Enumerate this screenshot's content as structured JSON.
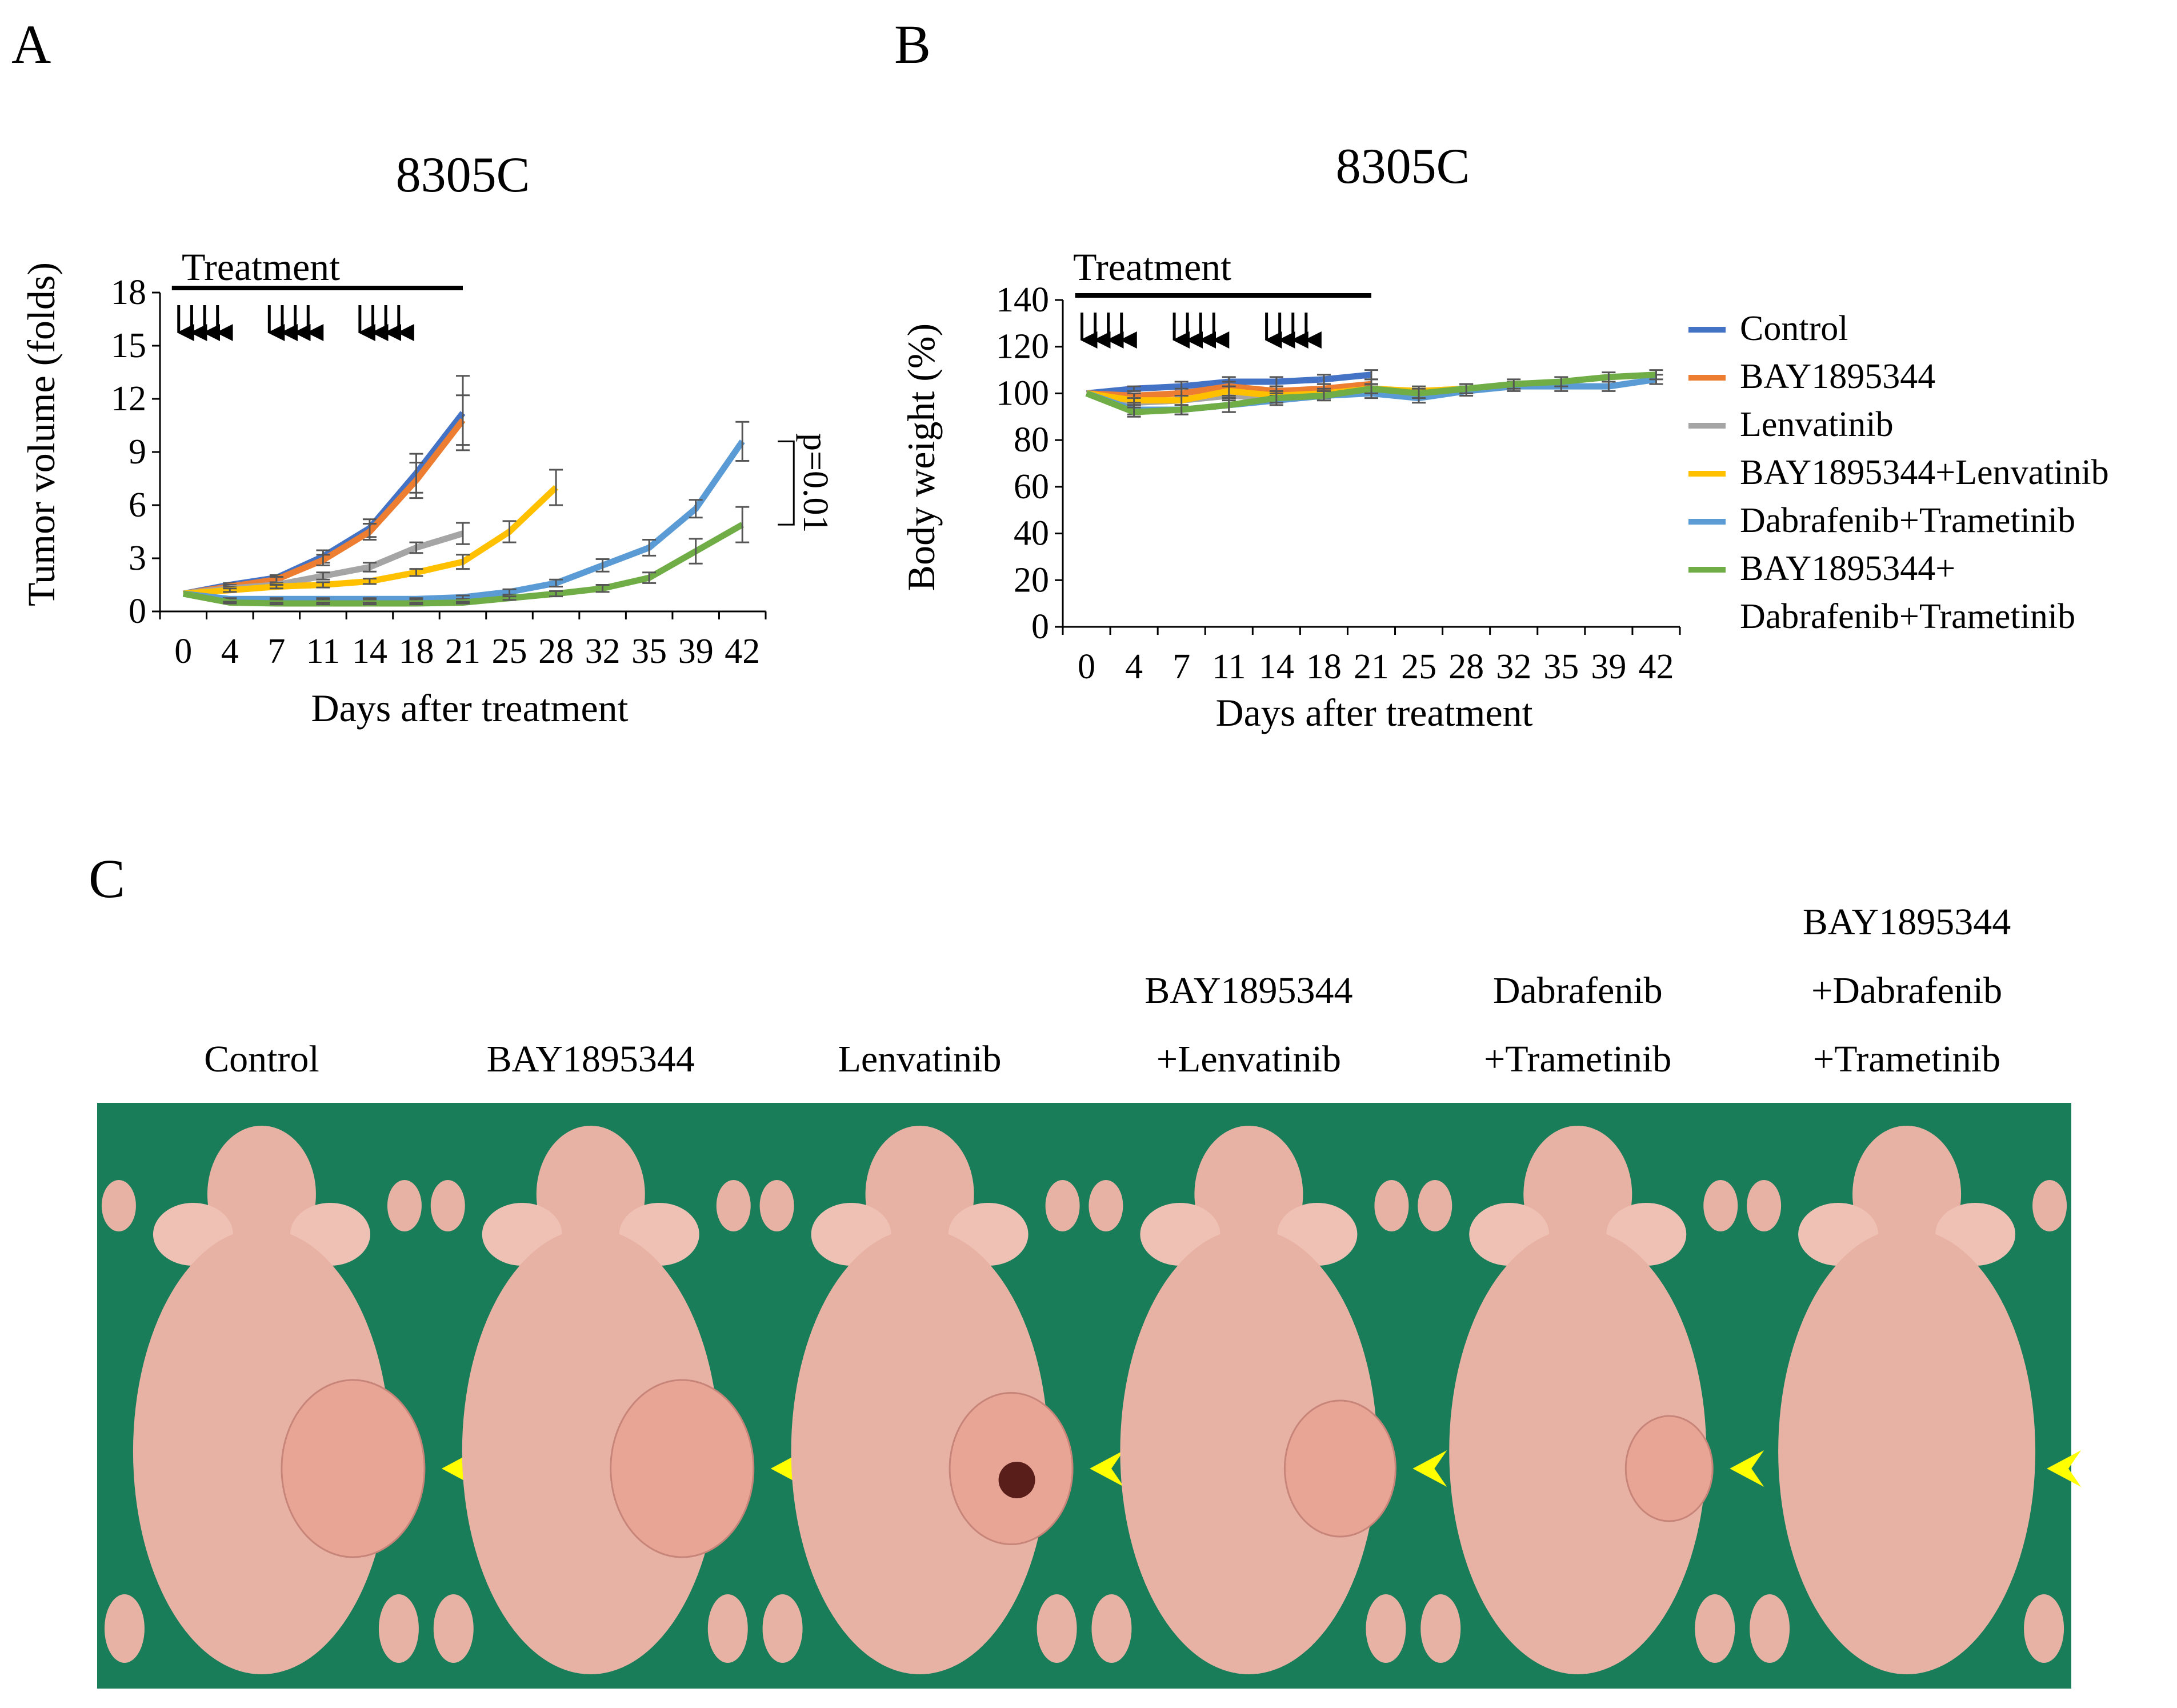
{
  "figure": {
    "panel_a_letter": "A",
    "panel_b_letter": "B",
    "panel_c_letter": "C"
  },
  "colors": {
    "Control": "#4472c4",
    "BAY1895344": "#ed7d31",
    "Lenvatinib": "#a5a5a5",
    "BAY1895344+Lenvatinib": "#ffc000",
    "Dabrafenib+Trametinib": "#5b9bd5",
    "BAY1895344+Dabrafenib+Trametinib": "#70ad47",
    "arrowhead": "#ffff00",
    "drape": "#1a7d5a",
    "skin": "#e7b1a3"
  },
  "chart_data": [
    {
      "panel": "A",
      "type": "line",
      "title": "8305C",
      "xlabel": "Days after treatment",
      "ylabel": "Tumor volume (folds)",
      "ylim": [
        0,
        18
      ],
      "yticks": [
        0,
        3,
        6,
        9,
        12,
        15,
        18
      ],
      "x": [
        0,
        4,
        7,
        11,
        14,
        18,
        21,
        25,
        28,
        32,
        35,
        39,
        42
      ],
      "xtick_labels": [
        "0",
        "4",
        "7",
        "11",
        "14",
        "18",
        "21",
        "25",
        "28",
        "32",
        "35",
        "39",
        "42"
      ],
      "treatment_label": "Treatment",
      "treatment_days": [
        0,
        1,
        2,
        3,
        7,
        8,
        9,
        10,
        14,
        15,
        16,
        17
      ],
      "treatment_end_day": 21,
      "annotation": "p=0.01",
      "series": [
        {
          "name": "Control",
          "x": [
            0,
            4,
            7,
            11,
            14,
            18,
            21
          ],
          "values": [
            1.0,
            1.5,
            1.9,
            3.1,
            4.7,
            7.8,
            11.2
          ],
          "err": [
            0,
            0.1,
            0.15,
            0.35,
            0.5,
            1.1,
            2.1
          ]
        },
        {
          "name": "BAY1895344",
          "x": [
            0,
            4,
            7,
            11,
            14,
            18,
            21
          ],
          "values": [
            1.0,
            1.4,
            1.8,
            2.9,
            4.5,
            7.4,
            10.8
          ],
          "err": [
            0,
            0.1,
            0.15,
            0.3,
            0.45,
            1.0,
            1.4
          ]
        },
        {
          "name": "Lenvatinib",
          "x": [
            0,
            4,
            7,
            11,
            14,
            18,
            21
          ],
          "values": [
            1.0,
            1.3,
            1.5,
            2.0,
            2.5,
            3.6,
            4.4
          ],
          "err": [
            0,
            0.1,
            0.1,
            0.2,
            0.25,
            0.3,
            0.6
          ]
        },
        {
          "name": "BAY1895344+Lenvatinib",
          "x": [
            0,
            4,
            7,
            11,
            14,
            18,
            21,
            25,
            28
          ],
          "values": [
            1.0,
            1.2,
            1.4,
            1.5,
            1.7,
            2.2,
            2.8,
            4.5,
            7.0
          ],
          "err": [
            0,
            0.1,
            0.1,
            0.15,
            0.15,
            0.2,
            0.4,
            0.6,
            1.0
          ]
        },
        {
          "name": "Dabrafenib+Trametinib",
          "x": [
            0,
            4,
            7,
            11,
            14,
            18,
            21,
            25,
            28,
            32,
            35,
            39,
            42
          ],
          "values": [
            1.0,
            0.7,
            0.7,
            0.7,
            0.7,
            0.7,
            0.8,
            1.1,
            1.6,
            2.6,
            3.6,
            5.8,
            9.6
          ],
          "err": [
            0,
            0.05,
            0.05,
            0.05,
            0.05,
            0.05,
            0.1,
            0.15,
            0.2,
            0.35,
            0.45,
            0.5,
            1.1
          ]
        },
        {
          "name": "BAY1895344+Dabrafenib+Trametinib",
          "x": [
            0,
            4,
            7,
            11,
            14,
            18,
            21,
            25,
            28,
            32,
            35,
            39,
            42
          ],
          "values": [
            1.0,
            0.5,
            0.45,
            0.45,
            0.45,
            0.45,
            0.5,
            0.75,
            1.0,
            1.3,
            1.9,
            3.4,
            4.9
          ],
          "err": [
            0,
            0.05,
            0.05,
            0.05,
            0.05,
            0.05,
            0.05,
            0.1,
            0.15,
            0.2,
            0.3,
            0.7,
            1.0
          ]
        }
      ]
    },
    {
      "panel": "B",
      "type": "line",
      "title": "8305C",
      "xlabel": "Days after treatment",
      "ylabel": "Body weight (%)",
      "ylim": [
        0,
        140
      ],
      "yticks": [
        0,
        20,
        40,
        60,
        80,
        100,
        120,
        140
      ],
      "x": [
        0,
        4,
        7,
        11,
        14,
        18,
        21,
        25,
        28,
        32,
        35,
        39,
        42
      ],
      "xtick_labels": [
        "0",
        "4",
        "7",
        "11",
        "14",
        "18",
        "21",
        "25",
        "28",
        "32",
        "35",
        "39",
        "42"
      ],
      "treatment_label": "Treatment",
      "treatment_days": [
        0,
        1,
        2,
        3,
        7,
        8,
        9,
        10,
        14,
        15,
        16,
        17
      ],
      "treatment_end_day": 21,
      "legend": [
        "Control",
        "BAY1895344",
        "Lenvatinib",
        "BAY1895344+Lenvatinib",
        "Dabrafenib+Trametinib",
        "BAY1895344+\nDabrafenib+Trametinib"
      ],
      "legend_position": "right",
      "series": [
        {
          "name": "Control",
          "x": [
            0,
            4,
            7,
            11,
            14,
            18,
            21
          ],
          "values": [
            100,
            102,
            103,
            105,
            105,
            106,
            108
          ],
          "err": [
            0,
            1,
            2,
            2,
            2,
            2,
            2
          ]
        },
        {
          "name": "BAY1895344",
          "x": [
            0,
            4,
            7,
            11,
            14,
            18,
            21
          ],
          "values": [
            100,
            99,
            100,
            103,
            101,
            102,
            104
          ],
          "err": [
            0,
            1,
            2,
            2,
            2,
            2,
            2
          ]
        },
        {
          "name": "Lenvatinib",
          "x": [
            0,
            4,
            7,
            11,
            14,
            18,
            21
          ],
          "values": [
            100,
            96,
            97,
            99,
            98,
            99,
            101
          ],
          "err": [
            0,
            1,
            2,
            2,
            2,
            2,
            2
          ]
        },
        {
          "name": "BAY1895344+Lenvatinib",
          "x": [
            0,
            4,
            7,
            11,
            14,
            18,
            21,
            25,
            28
          ],
          "values": [
            100,
            97,
            97,
            101,
            99,
            100,
            102,
            101,
            102
          ],
          "err": [
            0,
            1,
            2,
            2,
            2,
            2,
            2,
            2,
            2
          ]
        },
        {
          "name": "Dabrafenib+Trametinib",
          "x": [
            0,
            4,
            7,
            11,
            14,
            18,
            21,
            25,
            28,
            32,
            35,
            39,
            42
          ],
          "values": [
            100,
            93,
            93,
            95,
            97,
            99,
            100,
            98,
            101,
            103,
            103,
            103,
            106
          ],
          "err": [
            0,
            2,
            2,
            3,
            2,
            2,
            2,
            2,
            2,
            2,
            2,
            2,
            2
          ]
        },
        {
          "name": "BAY1895344+Dabrafenib+Trametinib",
          "x": [
            0,
            4,
            7,
            11,
            14,
            18,
            21,
            25,
            28,
            32,
            35,
            39,
            42
          ],
          "values": [
            100,
            92,
            93,
            95,
            98,
            99,
            102,
            100,
            102,
            104,
            105,
            107,
            108
          ],
          "err": [
            0,
            2,
            2,
            3,
            2,
            2,
            2,
            2,
            2,
            2,
            2,
            2,
            2
          ]
        }
      ]
    }
  ],
  "photos": {
    "labels": [
      [
        "Control"
      ],
      [
        "BAY1895344"
      ],
      [
        "Lenvatinib"
      ],
      [
        "BAY1895344",
        "+Lenvatinib"
      ],
      [
        "Dabrafenib",
        "+Trametinib"
      ],
      [
        "BAY1895344",
        "+Dabrafenib",
        "+Trametinib"
      ]
    ],
    "tumor_size": [
      1.0,
      1.0,
      0.75,
      0.6,
      0.3,
      0.0
    ],
    "ulcerated": [
      false,
      false,
      true,
      false,
      false,
      false
    ]
  }
}
